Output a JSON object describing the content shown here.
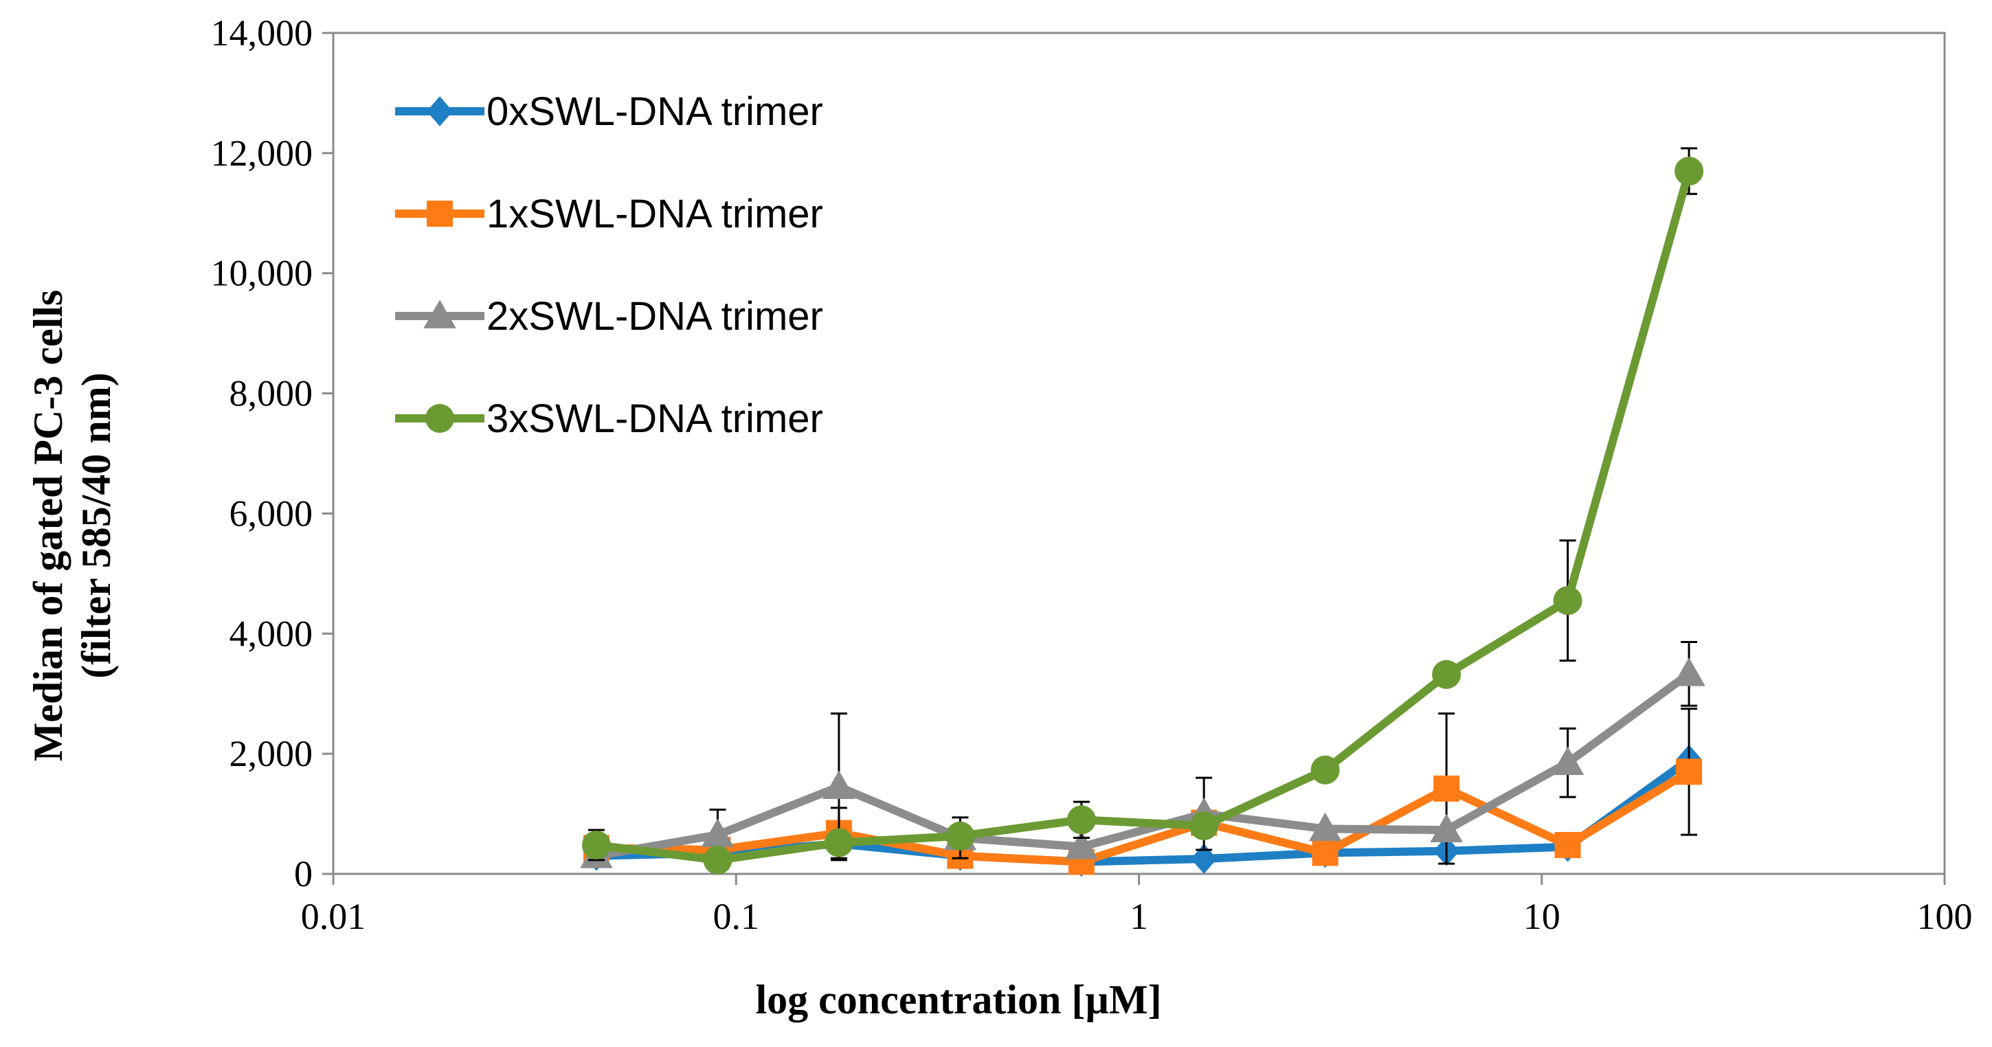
{
  "chart_data": {
    "type": "line",
    "title": "",
    "xlabel": "log concentration [µM]",
    "ylabel_line1": "Median of gated PC-3 cells",
    "ylabel_line2": "(filter 585/40 nm)",
    "xscale": "log",
    "xlim": [
      0.01,
      100
    ],
    "ylim": [
      0,
      14000
    ],
    "x_ticks": [
      0.01,
      0.1,
      1,
      10,
      100
    ],
    "x_tick_labels": [
      "0.01",
      "0.1",
      "1",
      "10",
      "100"
    ],
    "y_ticks": [
      0,
      2000,
      4000,
      6000,
      8000,
      10000,
      12000,
      14000
    ],
    "y_tick_labels": [
      "0",
      "2,000",
      "4,000",
      "6,000",
      "8,000",
      "10,000",
      "12,000",
      "14,000"
    ],
    "grid": false,
    "legend_position": "top-left",
    "x": [
      0.045,
      0.09,
      0.18,
      0.36,
      0.72,
      1.45,
      2.9,
      5.8,
      11.6,
      23.2
    ],
    "series": [
      {
        "name": "0xSWL-DNA trimer",
        "color": "#1f7fc4",
        "marker": "diamond",
        "values": [
          300,
          350,
          500,
          300,
          200,
          250,
          350,
          380,
          450,
          1900
        ],
        "errors": [
          0,
          0,
          0,
          0,
          0,
          0,
          0,
          0,
          0,
          0
        ]
      },
      {
        "name": "1xSWL-DNA trimer",
        "color": "#ff7b15",
        "marker": "square",
        "values": [
          430,
          400,
          680,
          300,
          200,
          850,
          350,
          1420,
          480,
          1700
        ],
        "errors": [
          0,
          0,
          420,
          0,
          0,
          0,
          0,
          1250,
          0,
          1050
        ]
      },
      {
        "name": "2xSWL-DNA trimer",
        "color": "#8c8c8c",
        "marker": "triangle",
        "values": [
          300,
          650,
          1450,
          600,
          450,
          1000,
          750,
          730,
          1850,
          3330
        ],
        "errors": [
          0,
          420,
          1220,
          340,
          0,
          600,
          0,
          0,
          570,
          530
        ]
      },
      {
        "name": "3xSWL-DNA trimer",
        "color": "#6b9a33",
        "marker": "circle",
        "values": [
          480,
          230,
          520,
          630,
          900,
          800,
          1730,
          3320,
          4550,
          11700
        ],
        "errors": [
          250,
          0,
          0,
          0,
          300,
          0,
          0,
          0,
          1000,
          380
        ]
      }
    ]
  }
}
